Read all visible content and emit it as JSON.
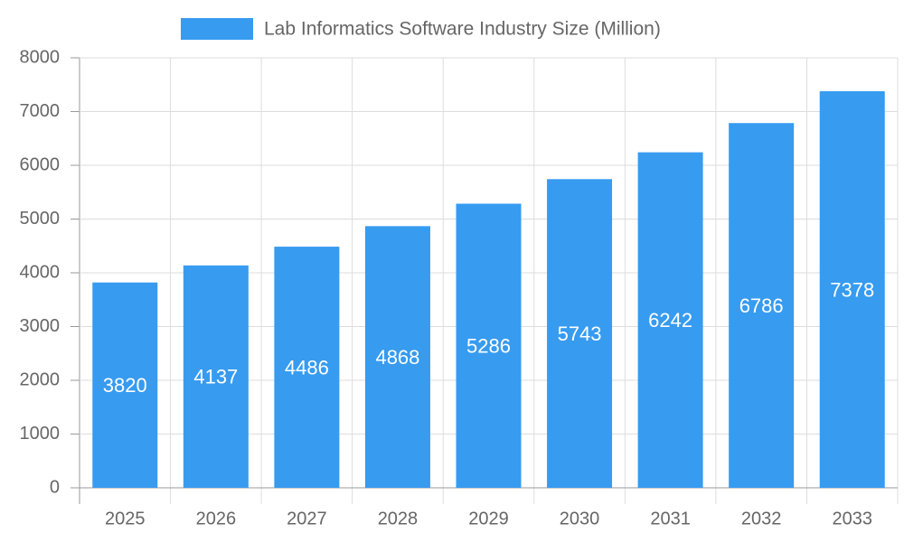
{
  "chart_data": {
    "type": "bar",
    "categories": [
      "2025",
      "2026",
      "2027",
      "2028",
      "2029",
      "2030",
      "2031",
      "2032",
      "2033"
    ],
    "series": [
      {
        "name": "Lab Informatics Software Industry Size (Million)",
        "color": "#379bf0",
        "values": [
          3820,
          4137,
          4486,
          4868,
          5286,
          5743,
          6242,
          6786,
          7378
        ]
      }
    ],
    "ylim": [
      0,
      8000
    ],
    "yticks": [
      0,
      1000,
      2000,
      3000,
      4000,
      5000,
      6000,
      7000,
      8000
    ],
    "grid": true,
    "legend": "top",
    "data_labels": true
  }
}
